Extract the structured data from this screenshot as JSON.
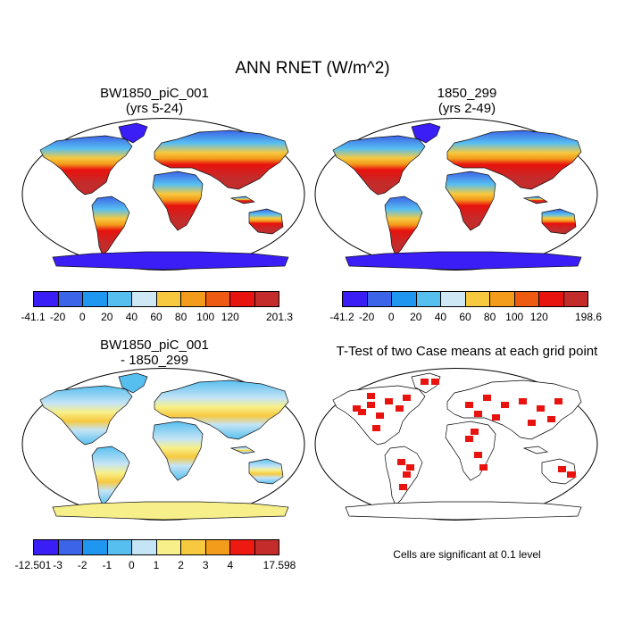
{
  "title": "ANN RNET (W/m^2)",
  "panels": {
    "top_left": {
      "title_line1": "BW1850_piC_001",
      "title_line2": "(yrs 5-24)"
    },
    "top_right": {
      "title_line1": "1850_299",
      "title_line2": "(yrs 2-49)"
    },
    "bottom_left": {
      "title_line1": "BW1850_piC_001",
      "title_line2": "- 1850_299"
    },
    "bottom_right": {
      "title_line1": "T-Test of two Case means at each grid point"
    }
  },
  "colorbars": {
    "top_left": {
      "labels": [
        "-41.1",
        "-20",
        "0",
        "20",
        "40",
        "60",
        "80",
        "100",
        "120",
        "201.3"
      ],
      "colors": [
        "#3a1ef5",
        "#3c64e8",
        "#1f96f0",
        "#57bff0",
        "#cfe8f5",
        "#f7c93f",
        "#f39b1b",
        "#ee5a12",
        "#e8120e",
        "#c42b2b"
      ]
    },
    "top_right": {
      "labels": [
        "-41.2",
        "-20",
        "0",
        "20",
        "40",
        "60",
        "80",
        "100",
        "120",
        "198.6"
      ],
      "colors": [
        "#3a1ef5",
        "#3c64e8",
        "#1f96f0",
        "#57bff0",
        "#cfe8f5",
        "#f7c93f",
        "#f39b1b",
        "#ee5a12",
        "#e8120e",
        "#c42b2b"
      ]
    },
    "bottom_left": {
      "labels": [
        "-12.501",
        "-3",
        "-2",
        "-1",
        "0",
        "1",
        "2",
        "3",
        "4",
        "17.598"
      ],
      "colors": [
        "#3a1ef5",
        "#3c64e8",
        "#1f96f0",
        "#57bff0",
        "#c5e4f5",
        "#f7f08a",
        "#f7c93f",
        "#f39b1b",
        "#ee1a12",
        "#c42b2b"
      ]
    }
  },
  "footnote": "Cells are significant at 0.1 level"
}
